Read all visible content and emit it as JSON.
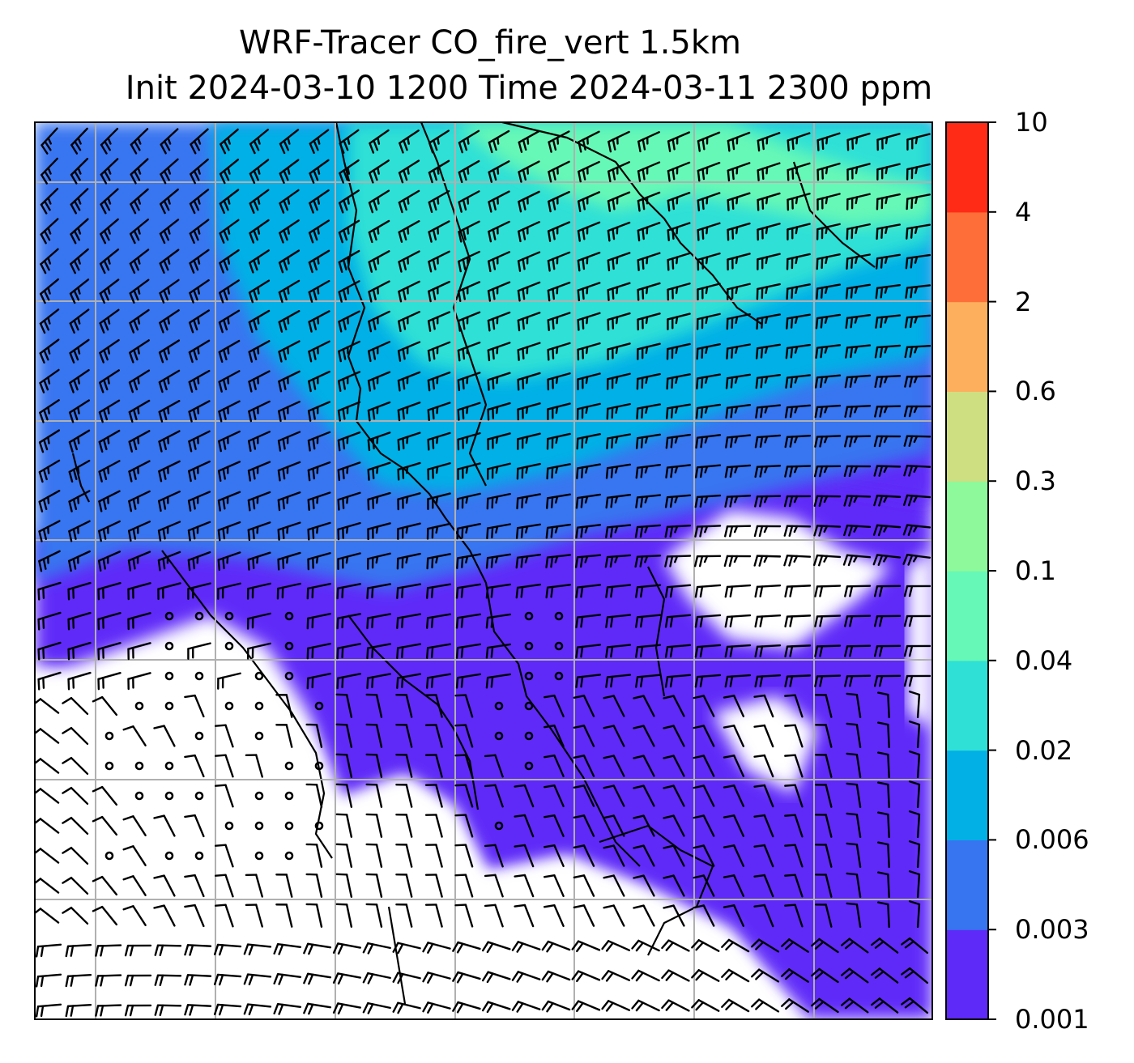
{
  "title": {
    "line1": "WRF-Tracer CO_fire_vert 1.5km",
    "line2": "Init 2024-03-10 1200 Time 2024-03-11 2300 ppm"
  },
  "colorbar": {
    "levels": [
      "0.001",
      "0.003",
      "0.006",
      "0.02",
      "0.04",
      "0.1",
      "0.3",
      "0.6",
      "2",
      "4",
      "10"
    ],
    "colors": [
      "#5e2af8",
      "#3774f0",
      "#02b0e6",
      "#2ee0d6",
      "#66f8b6",
      "#8ef99a",
      "#cedf82",
      "#fdaf5e",
      "#fe6e38",
      "#ff2b17"
    ]
  },
  "map": {
    "background": "#ffffff",
    "gridline_color": "#b0b0b0",
    "coastline_color": "#000000",
    "barb_color": "#000000"
  }
}
